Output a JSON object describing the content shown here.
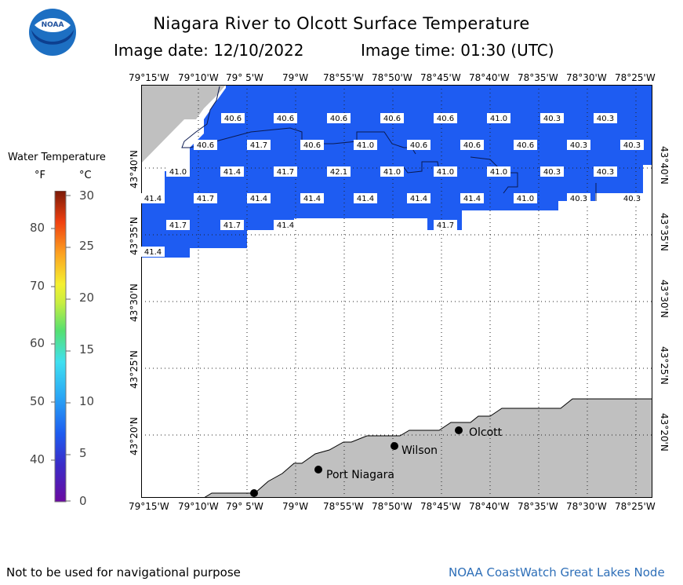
{
  "title": {
    "line1": "Niagara River to Olcott Surface Temperature",
    "date_label": "Image date:",
    "date": "12/10/2022",
    "time_label": "Image time:",
    "time": "01:30 (UTC)"
  },
  "logo": {
    "text": "NOAA"
  },
  "legend": {
    "title": "Water Temperature",
    "unit_f": "°F",
    "unit_c": "°C",
    "f_ticks": [
      "80",
      "70",
      "60",
      "50",
      "40"
    ],
    "c_ticks": [
      "30",
      "25",
      "20",
      "15",
      "10",
      "5",
      "0"
    ]
  },
  "axes": {
    "lon_labels": [
      "79°15'W",
      "79°10'W",
      "79° 5'W",
      "79°W",
      "78°55'W",
      "78°50'W",
      "78°45'W",
      "78°40'W",
      "78°35'W",
      "78°30'W",
      "78°25'W"
    ],
    "lat_labels": [
      "43°40'N",
      "43°35'N",
      "43°30'N",
      "43°25'N",
      "43°20'N"
    ]
  },
  "temperature_labels": {
    "row1": [
      "40.6",
      "40.6",
      "40.6",
      "40.6",
      "40.6",
      "41.0",
      "40.3",
      "40.3"
    ],
    "row2": [
      "40.6",
      "41.7",
      "40.6",
      "41.0",
      "40.6",
      "40.6",
      "40.6",
      "40.3",
      "40.3"
    ],
    "row3": [
      "41.0",
      "41.4",
      "41.7",
      "42.1",
      "41.0",
      "41.0",
      "41.0",
      "40.3",
      "40.3"
    ],
    "row4": [
      "41.4",
      "41.7",
      "41.4",
      "41.4",
      "41.4",
      "41.4",
      "41.4",
      "41.0",
      "40.3",
      "40.3"
    ],
    "row5": [
      "41.7",
      "41.7",
      "41.4",
      "41.7"
    ],
    "row6": [
      "41.4"
    ]
  },
  "places": [
    "Olcott",
    "Wilson",
    "Port Niagara"
  ],
  "footer": {
    "left": "Not to be used for navigational purpose",
    "right": "NOAA CoastWatch Great Lakes Node"
  },
  "colors": {
    "water": "#1e5cf2",
    "land": "#c0c0c0",
    "credit": "#2e6fb8"
  }
}
